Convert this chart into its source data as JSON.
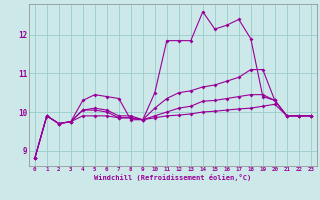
{
  "xlabel": "Windchill (Refroidissement éolien,°C)",
  "bg_color": "#cce8e8",
  "line_color": "#990099",
  "grid_color": "#99cccc",
  "xmin": -0.5,
  "xmax": 23.5,
  "ymin": 8.6,
  "ymax": 12.8,
  "yticks": [
    9,
    10,
    11,
    12
  ],
  "xticks": [
    0,
    1,
    2,
    3,
    4,
    5,
    6,
    7,
    8,
    9,
    10,
    11,
    12,
    13,
    14,
    15,
    16,
    17,
    18,
    19,
    20,
    21,
    22,
    23
  ],
  "lines": [
    {
      "x": [
        0,
        1,
        2,
        3,
        4,
        5,
        6,
        7,
        8,
        9,
        10,
        11,
        12,
        13,
        14,
        15,
        16,
        17,
        18,
        19,
        20,
        21,
        22,
        23
      ],
      "y": [
        8.8,
        9.9,
        9.7,
        9.75,
        10.3,
        10.45,
        10.4,
        10.35,
        9.8,
        9.8,
        10.5,
        11.85,
        11.85,
        11.85,
        12.6,
        12.15,
        12.25,
        12.4,
        11.9,
        10.4,
        10.3,
        9.9,
        9.9,
        9.9
      ]
    },
    {
      "x": [
        0,
        1,
        2,
        3,
        4,
        5,
        6,
        7,
        8,
        9,
        10,
        11,
        12,
        13,
        14,
        15,
        16,
        17,
        18,
        19,
        20,
        21,
        22,
        23
      ],
      "y": [
        8.8,
        9.9,
        9.7,
        9.75,
        10.05,
        10.1,
        10.05,
        9.9,
        9.9,
        9.8,
        10.1,
        10.35,
        10.5,
        10.55,
        10.65,
        10.7,
        10.8,
        10.9,
        11.1,
        11.1,
        10.3,
        9.9,
        9.9,
        9.9
      ]
    },
    {
      "x": [
        0,
        1,
        2,
        3,
        4,
        5,
        6,
        7,
        8,
        9,
        10,
        11,
        12,
        13,
        14,
        15,
        16,
        17,
        18,
        19,
        20,
        21,
        22,
        23
      ],
      "y": [
        8.8,
        9.9,
        9.7,
        9.75,
        9.9,
        9.9,
        9.9,
        9.85,
        9.85,
        9.8,
        9.85,
        9.9,
        9.92,
        9.95,
        10.0,
        10.02,
        10.05,
        10.08,
        10.1,
        10.15,
        10.2,
        9.9,
        9.9,
        9.9
      ]
    },
    {
      "x": [
        0,
        1,
        2,
        3,
        4,
        5,
        6,
        7,
        8,
        9,
        10,
        11,
        12,
        13,
        14,
        15,
        16,
        17,
        18,
        19,
        20,
        21,
        22,
        23
      ],
      "y": [
        8.8,
        9.9,
        9.7,
        9.75,
        10.05,
        10.05,
        10.0,
        9.85,
        9.85,
        9.8,
        9.9,
        10.0,
        10.1,
        10.15,
        10.28,
        10.3,
        10.35,
        10.4,
        10.45,
        10.45,
        10.3,
        9.9,
        9.9,
        9.9
      ]
    }
  ]
}
